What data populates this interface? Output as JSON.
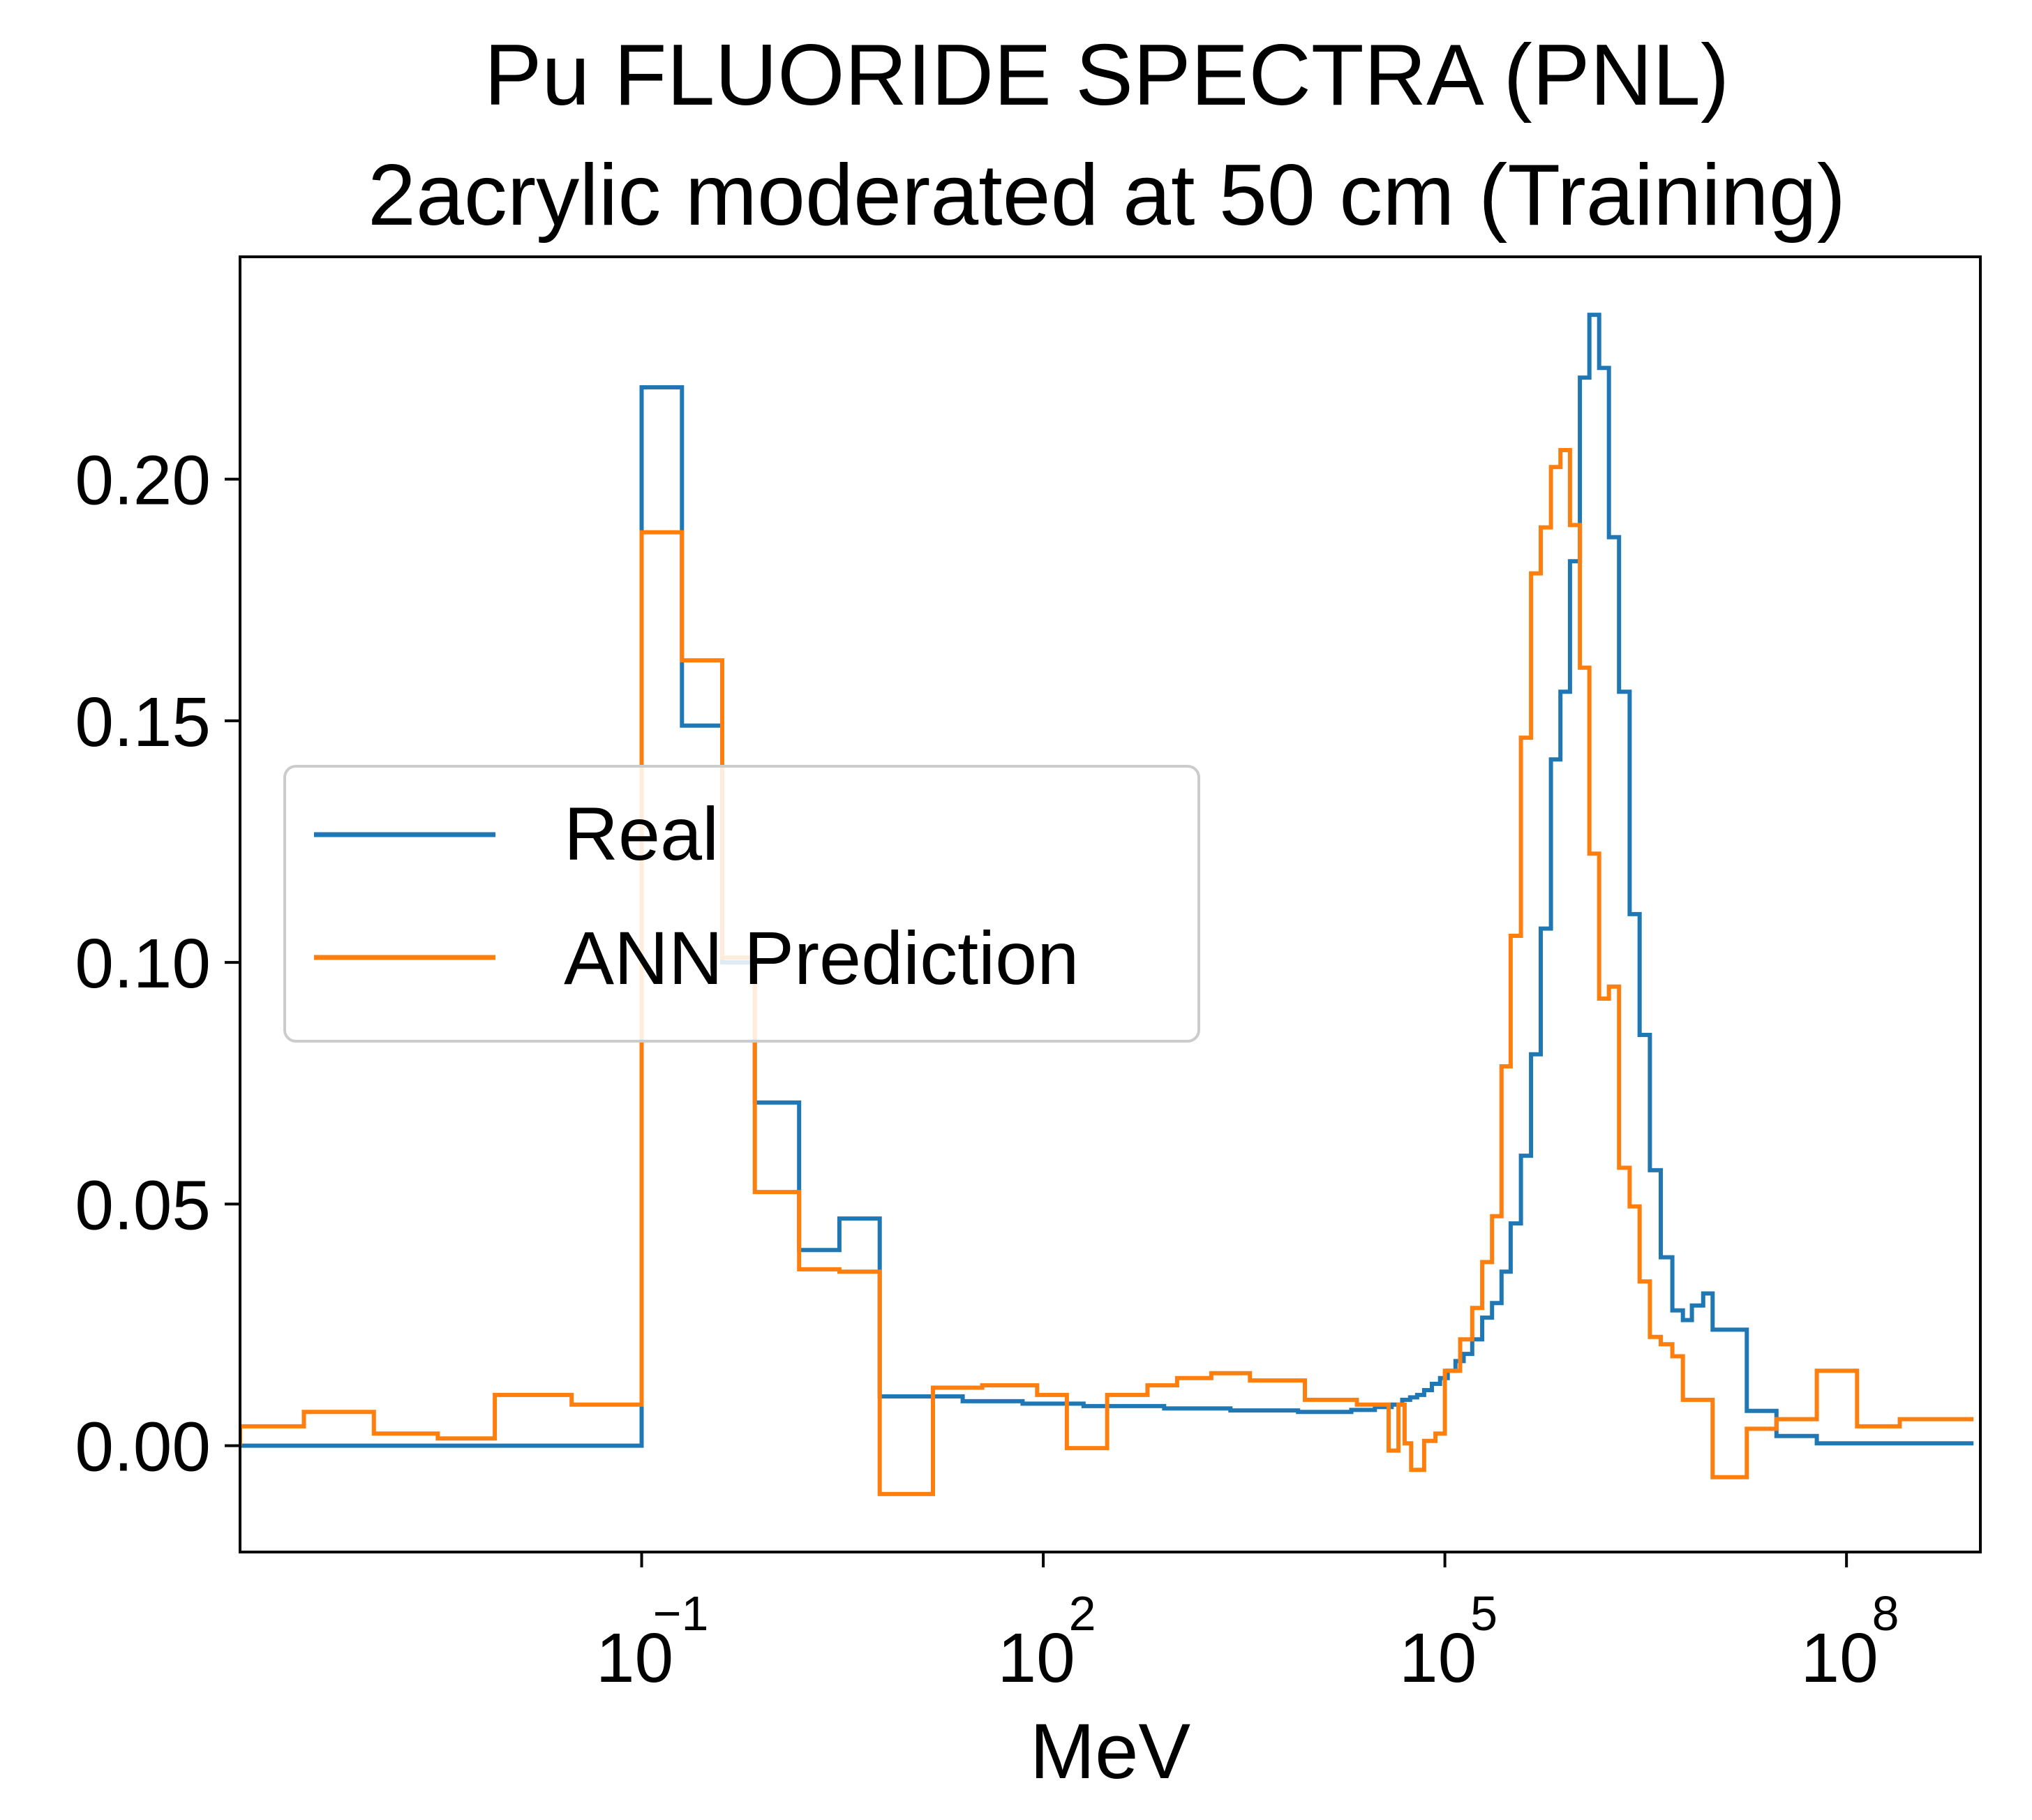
{
  "chart_data": {
    "type": "line",
    "title": "Pu FLUORIDE SPECTRA (PNL)",
    "subtitle": "2acrylic moderated at 50 cm (Training)",
    "xlabel": "MeV",
    "ylabel": "",
    "xscale": "log",
    "xlim": [
      0.0001,
      1000000000.0
    ],
    "ylim": [
      -0.022,
      0.246
    ],
    "grid": false,
    "legend_position": "center-left",
    "x_ticks": [
      {
        "base": "10",
        "exp": "−1",
        "value": 0.1
      },
      {
        "base": "10",
        "exp": "2",
        "value": 100
      },
      {
        "base": "10",
        "exp": "5",
        "value": 100000
      },
      {
        "base": "10",
        "exp": "8",
        "value": 100000000
      }
    ],
    "y_ticks": [
      "0.00",
      "0.05",
      "0.10",
      "0.15",
      "0.20"
    ],
    "y_tick_values": [
      0.0,
      0.05,
      0.1,
      0.15,
      0.2
    ],
    "series": [
      {
        "name": "Real",
        "color": "#1f77b4",
        "steps": [
          [
            0.0001,
            0.0
          ],
          [
            0.1,
            0.219
          ],
          [
            0.2,
            0.149
          ],
          [
            0.4,
            0.1
          ],
          [
            0.7,
            0.071
          ],
          [
            1.5,
            0.0405
          ],
          [
            3,
            0.047
          ],
          [
            6,
            0.0102
          ],
          [
            25,
            0.0092
          ],
          [
            70,
            0.0087
          ],
          [
            200,
            0.0082
          ],
          [
            800,
            0.0077
          ],
          [
            2500,
            0.0073
          ],
          [
            8000,
            0.007
          ],
          [
            20000,
            0.0074
          ],
          [
            30000,
            0.008
          ],
          [
            40000,
            0.0085
          ],
          [
            48000,
            0.0095
          ],
          [
            55000,
            0.01
          ],
          [
            62000,
            0.0105
          ],
          [
            70000,
            0.0115
          ],
          [
            80000,
            0.0128
          ],
          [
            92000,
            0.014
          ],
          [
            105000,
            0.0155
          ],
          [
            120000,
            0.0175
          ],
          [
            138000,
            0.019
          ],
          [
            160000,
            0.022
          ],
          [
            190000,
            0.0265
          ],
          [
            225000,
            0.0295
          ],
          [
            265000,
            0.036
          ],
          [
            310000,
            0.046
          ],
          [
            370000,
            0.06
          ],
          [
            440000,
            0.081
          ],
          [
            520000,
            0.107
          ],
          [
            620000,
            0.142
          ],
          [
            730000,
            0.156
          ],
          [
            860000,
            0.183
          ],
          [
            1020000,
            0.221
          ],
          [
            1200000,
            0.234
          ],
          [
            1420000,
            0.223
          ],
          [
            1680000,
            0.188
          ],
          [
            2000000,
            0.156
          ],
          [
            2400000,
            0.11
          ],
          [
            2850000,
            0.085
          ],
          [
            3400000,
            0.057
          ],
          [
            4100000,
            0.039
          ],
          [
            5000000,
            0.028
          ],
          [
            6000000,
            0.026
          ],
          [
            7000000,
            0.029
          ],
          [
            8500000,
            0.0315
          ],
          [
            10000000,
            0.024
          ],
          [
            18000000,
            0.0072
          ],
          [
            30000000,
            0.002
          ],
          [
            60000000,
            0.0005
          ],
          [
            150000000,
            0.0005
          ],
          [
            500000000,
            0.0005
          ]
        ]
      },
      {
        "name": "ANN Prediction",
        "color": "#ff7f0e",
        "steps": [
          [
            0.0001,
            0.004
          ],
          [
            0.0003,
            0.007
          ],
          [
            0.001,
            0.0025
          ],
          [
            0.003,
            0.0015
          ],
          [
            0.008,
            0.0105
          ],
          [
            0.03,
            0.0085
          ],
          [
            0.1,
            0.189
          ],
          [
            0.2,
            0.1625
          ],
          [
            0.4,
            0.101
          ],
          [
            0.7,
            0.0525
          ],
          [
            1.5,
            0.0365
          ],
          [
            3,
            0.036
          ],
          [
            6,
            -0.01
          ],
          [
            15,
            0.012
          ],
          [
            35,
            0.0125
          ],
          [
            90,
            0.0105
          ],
          [
            150,
            -0.0005
          ],
          [
            300,
            0.0105
          ],
          [
            600,
            0.0125
          ],
          [
            1000,
            0.014
          ],
          [
            1800,
            0.015
          ],
          [
            3500,
            0.0135
          ],
          [
            9000,
            0.0095
          ],
          [
            22000,
            0.0085
          ],
          [
            38000,
            -0.001
          ],
          [
            45000,
            0.0085
          ],
          [
            50000,
            0.0005
          ],
          [
            56000,
            -0.005
          ],
          [
            70000,
            0.001
          ],
          [
            85000,
            0.0025
          ],
          [
            100000,
            0.0155
          ],
          [
            130000,
            0.022
          ],
          [
            160000,
            0.0285
          ],
          [
            190000,
            0.038
          ],
          [
            225000,
            0.0475
          ],
          [
            265000,
            0.0785
          ],
          [
            310000,
            0.1055
          ],
          [
            370000,
            0.1465
          ],
          [
            440000,
            0.1805
          ],
          [
            520000,
            0.19
          ],
          [
            620000,
            0.2025
          ],
          [
            730000,
            0.206
          ],
          [
            860000,
            0.1905
          ],
          [
            1020000,
            0.161
          ],
          [
            1200000,
            0.1225
          ],
          [
            1420000,
            0.0925
          ],
          [
            1680000,
            0.095
          ],
          [
            2000000,
            0.0575
          ],
          [
            2400000,
            0.0495
          ],
          [
            2850000,
            0.034
          ],
          [
            3400000,
            0.0225
          ],
          [
            4100000,
            0.021
          ],
          [
            5000000,
            0.0185
          ],
          [
            6000000,
            0.0095
          ],
          [
            10000000,
            -0.0065
          ],
          [
            18000000,
            0.0035
          ],
          [
            30000000,
            0.0055
          ],
          [
            60000000,
            0.0155
          ],
          [
            120000000,
            0.004
          ],
          [
            250000000,
            0.0055
          ],
          [
            500000000,
            0.0055
          ]
        ]
      }
    ]
  }
}
